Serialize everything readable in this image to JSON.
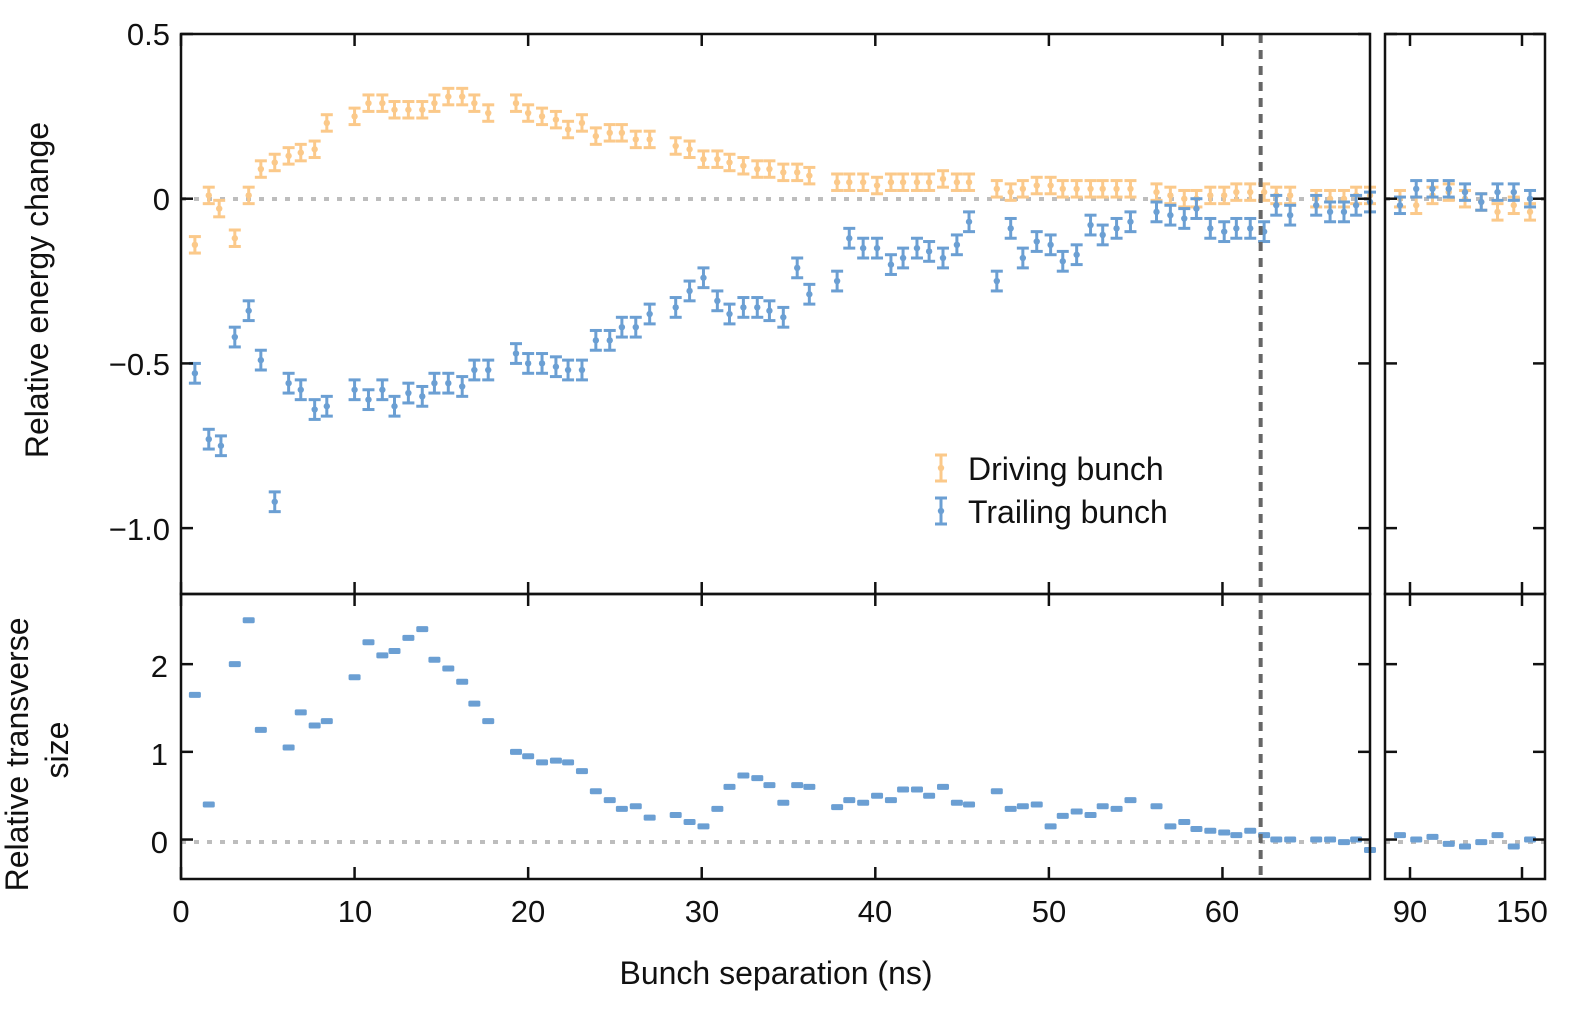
{
  "chart_data": {
    "type": "scatter",
    "xlabel": "Bunch separation (ns)",
    "colors": {
      "driving": "#fbc98a",
      "trailing": "#6b9fd3",
      "zero_line": "#bdbdbd",
      "marker_line": "#666666"
    },
    "vertical_marker_x": 62.2,
    "x_main_range": [
      0,
      68.5
    ],
    "x_main_ticks": [
      0,
      10,
      20,
      30,
      40,
      50,
      60
    ],
    "x_right_tick_labels": [
      "90",
      "150"
    ],
    "top": {
      "ylabel": "Relative energy change",
      "ylim": [
        -1.2,
        0.5
      ],
      "yticks": [
        0.5,
        0,
        -0.5,
        -1.0
      ],
      "ytick_labels": [
        "0.5",
        "0",
        "−0.5",
        "−1.0"
      ],
      "legend": {
        "position": "lower-right",
        "entries": [
          "Driving bunch",
          "Trailing bunch"
        ]
      },
      "series": [
        {
          "name": "Driving bunch",
          "color_key": "driving",
          "err": 0.025,
          "x": [
            0.8,
            1.6,
            2.2,
            3.1,
            3.9,
            4.6,
            5.4,
            6.2,
            6.9,
            7.7,
            8.4,
            10.0,
            10.8,
            11.6,
            12.3,
            13.1,
            13.9,
            14.6,
            15.4,
            16.2,
            16.9,
            17.7,
            19.3,
            20.0,
            20.8,
            21.6,
            22.3,
            23.1,
            23.9,
            24.7,
            25.4,
            26.2,
            27.0,
            28.5,
            29.3,
            30.1,
            30.9,
            31.6,
            32.4,
            33.2,
            33.9,
            34.7,
            35.5,
            36.2,
            37.8,
            38.5,
            39.3,
            40.1,
            40.9,
            41.6,
            42.4,
            43.1,
            43.9,
            44.7,
            45.4,
            47.0,
            47.8,
            48.5,
            49.3,
            50.1,
            50.8,
            51.6,
            52.4,
            53.1,
            53.9,
            54.7,
            56.2,
            57.0,
            57.8,
            58.5,
            59.3,
            60.1,
            60.8,
            61.6,
            62.4,
            63.1,
            63.9,
            65.4,
            66.2,
            67.0,
            67.7,
            68.5
          ],
          "y": [
            -0.14,
            0.01,
            -0.03,
            -0.12,
            0.01,
            0.09,
            0.11,
            0.13,
            0.14,
            0.15,
            0.23,
            0.25,
            0.29,
            0.29,
            0.27,
            0.27,
            0.27,
            0.29,
            0.31,
            0.31,
            0.29,
            0.26,
            0.29,
            0.26,
            0.25,
            0.24,
            0.21,
            0.23,
            0.19,
            0.2,
            0.2,
            0.18,
            0.18,
            0.16,
            0.15,
            0.12,
            0.12,
            0.11,
            0.1,
            0.09,
            0.09,
            0.08,
            0.08,
            0.07,
            0.05,
            0.05,
            0.05,
            0.04,
            0.05,
            0.05,
            0.05,
            0.05,
            0.06,
            0.05,
            0.05,
            0.03,
            0.02,
            0.03,
            0.04,
            0.04,
            0.03,
            0.03,
            0.03,
            0.03,
            0.03,
            0.03,
            0.02,
            0.01,
            0.0,
            0.0,
            0.01,
            0.01,
            0.02,
            0.02,
            0.02,
            0.01,
            0.01,
            0.0,
            0.0,
            0.0,
            0.01,
            0.01
          ]
        },
        {
          "name": "Trailing bunch",
          "color_key": "trailing",
          "err": 0.03,
          "x": [
            0.8,
            1.6,
            2.3,
            3.1,
            3.9,
            4.6,
            5.4,
            6.2,
            6.9,
            7.7,
            8.4,
            10.0,
            10.8,
            11.6,
            12.3,
            13.1,
            13.9,
            14.6,
            15.4,
            16.2,
            16.9,
            17.7,
            19.3,
            20.0,
            20.8,
            21.6,
            22.3,
            23.1,
            23.9,
            24.7,
            25.4,
            26.2,
            27.0,
            28.5,
            29.3,
            30.1,
            30.9,
            31.6,
            32.4,
            33.2,
            33.9,
            34.7,
            35.5,
            36.2,
            37.8,
            38.5,
            39.3,
            40.1,
            40.9,
            41.6,
            42.4,
            43.1,
            43.9,
            44.7,
            45.4,
            47.0,
            47.8,
            48.5,
            49.3,
            50.1,
            50.8,
            51.6,
            52.4,
            53.1,
            53.9,
            54.7,
            56.2,
            57.0,
            57.8,
            58.5,
            59.3,
            60.1,
            60.8,
            61.6,
            62.4,
            63.1,
            63.9,
            65.4,
            66.2,
            67.0,
            67.7,
            68.5
          ],
          "y": [
            -0.53,
            -0.73,
            -0.75,
            -0.42,
            -0.34,
            -0.49,
            -0.92,
            -0.56,
            -0.58,
            -0.64,
            -0.63,
            -0.58,
            -0.61,
            -0.58,
            -0.63,
            -0.59,
            -0.6,
            -0.56,
            -0.56,
            -0.57,
            -0.52,
            -0.52,
            -0.47,
            -0.5,
            -0.5,
            -0.51,
            -0.52,
            -0.52,
            -0.43,
            -0.43,
            -0.39,
            -0.39,
            -0.35,
            -0.33,
            -0.28,
            -0.24,
            -0.31,
            -0.35,
            -0.33,
            -0.33,
            -0.34,
            -0.36,
            -0.21,
            -0.29,
            -0.25,
            -0.12,
            -0.15,
            -0.15,
            -0.2,
            -0.18,
            -0.15,
            -0.16,
            -0.18,
            -0.14,
            -0.07,
            -0.25,
            -0.09,
            -0.18,
            -0.13,
            -0.14,
            -0.19,
            -0.17,
            -0.08,
            -0.11,
            -0.09,
            -0.07,
            -0.04,
            -0.05,
            -0.06,
            -0.03,
            -0.09,
            -0.1,
            -0.09,
            -0.09,
            -0.1,
            -0.02,
            -0.05,
            -0.02,
            -0.04,
            -0.04,
            -0.02,
            -0.01
          ]
        }
      ]
    },
    "bottom": {
      "ylabel": "Relative transverse size",
      "ylim": [
        -0.45,
        2.8
      ],
      "yticks": [
        0,
        1,
        2
      ],
      "ytick_labels": [
        "0",
        "1",
        "2"
      ],
      "series": [
        {
          "name": "Trailing bunch",
          "color_key": "trailing",
          "x": [
            0.8,
            1.6,
            3.1,
            3.9,
            4.6,
            6.2,
            6.9,
            7.7,
            8.4,
            10.0,
            10.8,
            11.6,
            12.3,
            13.1,
            13.9,
            14.6,
            15.4,
            16.2,
            16.9,
            17.7,
            19.3,
            20.0,
            20.8,
            21.6,
            22.3,
            23.1,
            23.9,
            24.7,
            25.4,
            26.2,
            27.0,
            28.5,
            29.3,
            30.1,
            30.9,
            31.6,
            32.4,
            33.2,
            33.9,
            34.7,
            35.5,
            36.2,
            37.8,
            38.5,
            39.3,
            40.1,
            40.9,
            41.6,
            42.4,
            43.1,
            43.9,
            44.7,
            45.4,
            47.0,
            47.8,
            48.5,
            49.3,
            50.1,
            50.8,
            51.6,
            52.4,
            53.1,
            53.9,
            54.7,
            56.2,
            57.0,
            57.8,
            58.5,
            59.3,
            60.1,
            60.8,
            61.6,
            62.4,
            63.1,
            63.9,
            65.4,
            66.2,
            67.0,
            67.7,
            68.5
          ],
          "y": [
            1.65,
            0.4,
            2.0,
            2.5,
            1.25,
            1.05,
            1.45,
            1.3,
            1.35,
            1.85,
            2.25,
            2.1,
            2.15,
            2.3,
            2.4,
            2.05,
            1.95,
            1.8,
            1.55,
            1.35,
            1.0,
            0.95,
            0.88,
            0.9,
            0.88,
            0.78,
            0.55,
            0.45,
            0.35,
            0.38,
            0.25,
            0.28,
            0.2,
            0.15,
            0.35,
            0.6,
            0.73,
            0.7,
            0.62,
            0.42,
            0.62,
            0.6,
            0.37,
            0.45,
            0.42,
            0.5,
            0.45,
            0.57,
            0.57,
            0.5,
            0.6,
            0.42,
            0.4,
            0.55,
            0.35,
            0.38,
            0.4,
            0.15,
            0.27,
            0.32,
            0.28,
            0.38,
            0.35,
            0.45,
            0.38,
            0.15,
            0.2,
            0.12,
            0.1,
            0.08,
            0.05,
            0.1,
            0.05,
            0.0,
            0.0,
            0.0,
            0.0,
            -0.03,
            0.0,
            -0.12
          ]
        }
      ]
    },
    "inset_top": {
      "series": [
        {
          "name": "Driving bunch",
          "color_key": "driving",
          "x": [
            0.3,
            1.0,
            1.7,
            2.4,
            3.1,
            3.8,
            4.5,
            5.2,
            5.9
          ],
          "y": [
            0.0,
            -0.02,
            0.01,
            0.02,
            0.0,
            -0.01,
            -0.04,
            -0.02,
            -0.04
          ]
        },
        {
          "name": "Trailing bunch",
          "color_key": "trailing",
          "x": [
            0.3,
            1.0,
            1.7,
            2.4,
            3.1,
            3.8,
            4.5,
            5.2,
            5.9
          ],
          "y": [
            -0.02,
            0.03,
            0.03,
            0.03,
            0.02,
            -0.01,
            0.02,
            0.02,
            0.0
          ]
        }
      ]
    },
    "inset_bottom": {
      "series": [
        {
          "name": "Trailing bunch",
          "color_key": "trailing",
          "x": [
            0.3,
            1.0,
            1.7,
            2.4,
            3.1,
            3.8,
            4.5,
            5.2,
            5.9
          ],
          "y": [
            0.05,
            0.0,
            0.03,
            -0.05,
            -0.08,
            -0.03,
            0.05,
            -0.08,
            0.0
          ]
        }
      ]
    }
  }
}
